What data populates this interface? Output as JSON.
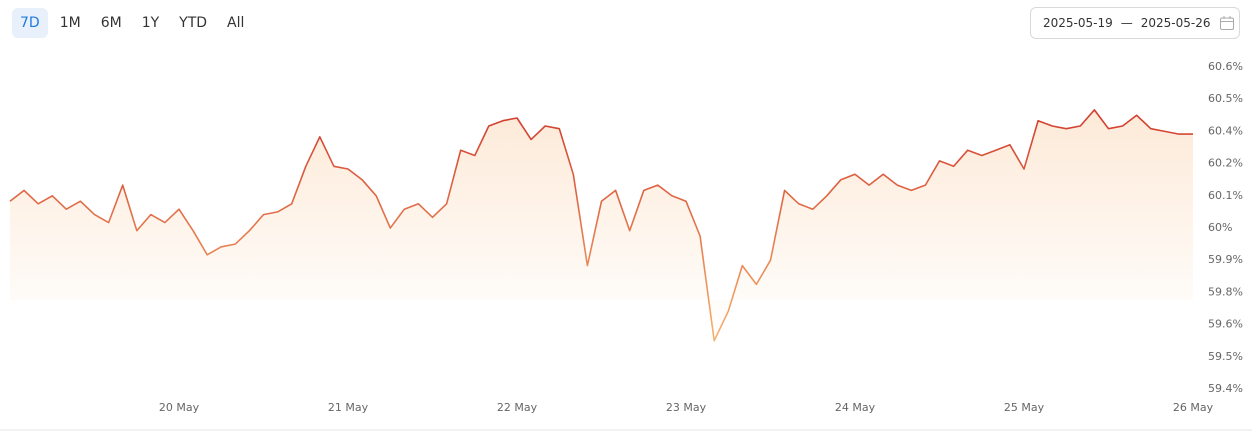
{
  "range_buttons": [
    "7D",
    "1M",
    "6M",
    "1Y",
    "YTD",
    "All"
  ],
  "active_range": 0,
  "date_range": {
    "start": "2025-05-19",
    "separator": "—",
    "end": "2025-05-26"
  },
  "chart_data": {
    "type": "area",
    "values": [
      60.1,
      60.14,
      60.09,
      60.12,
      60.07,
      60.1,
      60.05,
      60.02,
      60.16,
      59.99,
      60.05,
      60.02,
      60.07,
      59.99,
      59.9,
      59.93,
      59.94,
      59.99,
      60.05,
      60.06,
      60.09,
      60.23,
      60.34,
      60.23,
      60.22,
      60.18,
      60.12,
      60.0,
      60.07,
      60.09,
      60.04,
      60.09,
      60.29,
      60.27,
      60.38,
      60.4,
      60.41,
      60.33,
      60.38,
      60.37,
      60.2,
      59.86,
      60.1,
      60.14,
      59.99,
      60.14,
      60.16,
      60.12,
      60.1,
      59.97,
      59.58,
      59.69,
      59.86,
      59.79,
      59.88,
      60.14,
      60.09,
      60.07,
      60.12,
      60.18,
      60.2,
      60.16,
      60.2,
      60.16,
      60.14,
      60.16,
      60.25,
      60.23,
      60.29,
      60.27,
      60.29,
      60.31,
      60.22,
      60.4,
      60.38,
      60.37,
      60.38,
      60.44,
      60.37,
      60.38,
      60.42,
      60.37,
      60.36,
      60.35,
      60.35
    ],
    "xlim": [
      0,
      84
    ],
    "xticks": [
      {
        "value": 12,
        "label": "20 May"
      },
      {
        "value": 24,
        "label": "21 May"
      },
      {
        "value": 36,
        "label": "22 May"
      },
      {
        "value": 48,
        "label": "23 May"
      },
      {
        "value": 60,
        "label": "24 May"
      },
      {
        "value": 72,
        "label": "25 May"
      },
      {
        "value": 84,
        "label": "26 May"
      }
    ],
    "ylim": [
      59.4,
      60.6
    ],
    "yticks": [
      {
        "value": 59.4,
        "label": "59.4%"
      },
      {
        "value": 59.52,
        "label": "59.5%"
      },
      {
        "value": 59.64,
        "label": "59.6%"
      },
      {
        "value": 59.76,
        "label": "59.8%"
      },
      {
        "value": 59.88,
        "label": "59.9%"
      },
      {
        "value": 60.0,
        "label": "60%"
      },
      {
        "value": 60.12,
        "label": "60.1%"
      },
      {
        "value": 60.24,
        "label": "60.2%"
      },
      {
        "value": 60.36,
        "label": "60.4%"
      },
      {
        "value": 60.48,
        "label": "60.5%"
      },
      {
        "value": 60.6,
        "label": "60.6%"
      }
    ],
    "grid": false,
    "line_color_top": "#d0352a",
    "line_color_bottom": "#f6b46e",
    "fill_color": "#fbd9b8"
  }
}
